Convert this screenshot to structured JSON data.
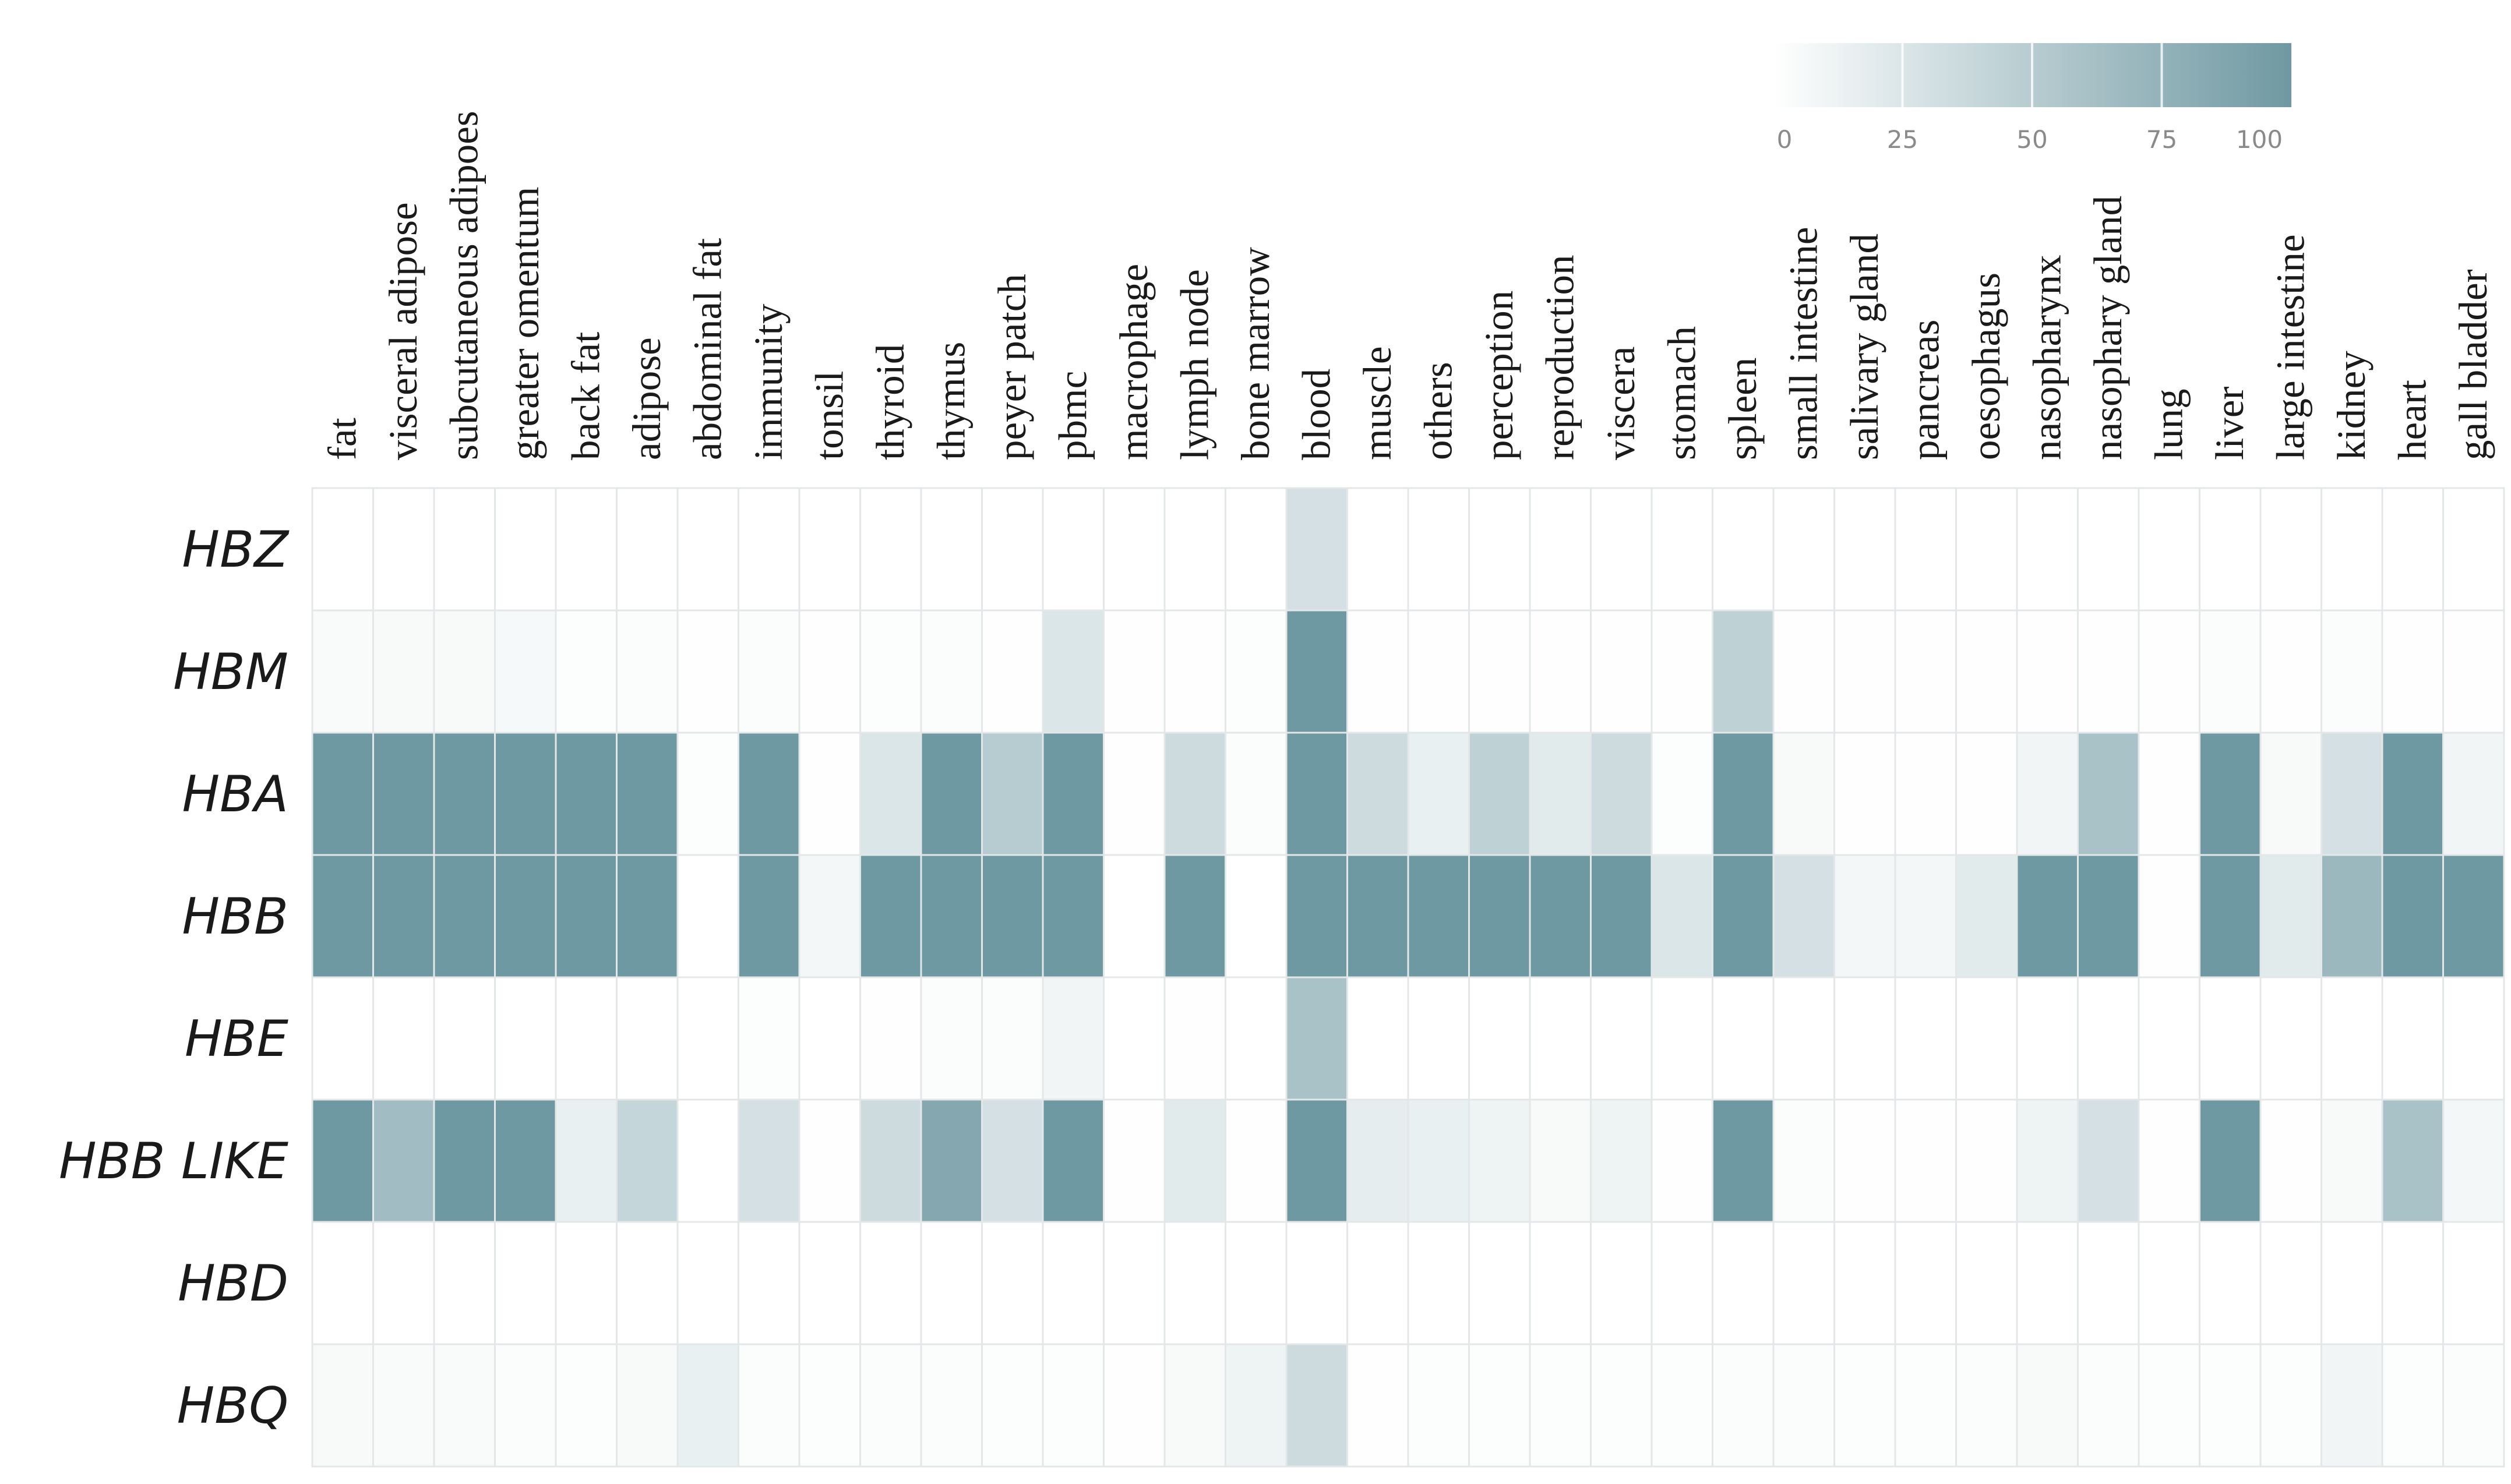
{
  "chart_data": {
    "type": "heatmap",
    "title": "",
    "columns": [
      "fat",
      "visceral adipose",
      "subcutaneous adipoes",
      "greater omentum",
      "back fat",
      "adipose",
      "abdominal fat",
      "immunity",
      "tonsil",
      "thyroid",
      "thymus",
      "peyer patch",
      "pbmc",
      "macrophage",
      "lymph node",
      "bone marrow",
      "blood",
      "muscle",
      "others",
      "perception",
      "reproduction",
      "viscera",
      "stomach",
      "spleen",
      "small intestine",
      "salivary gland",
      "pancreas",
      "oesophagus",
      "nasopharynx",
      "nasophary gland",
      "lung",
      "liver",
      "large intestine",
      "kidney",
      "heart",
      "gall bladder"
    ],
    "rows": [
      "HBZ",
      "HBM",
      "HBA",
      "HBB",
      "HBE",
      "HBB LIKE",
      "HBD",
      "HBQ"
    ],
    "values": [
      [
        0,
        0,
        0,
        0,
        0,
        0,
        0,
        0,
        0,
        0,
        0,
        0,
        0,
        0,
        0,
        0,
        30,
        0,
        0,
        0,
        0,
        0,
        0,
        0,
        0,
        0,
        0,
        0,
        0,
        0,
        0,
        0,
        0,
        0,
        0,
        0
      ],
      [
        4,
        5,
        5,
        6,
        2,
        3,
        1,
        3,
        1,
        2,
        3,
        1,
        25,
        1,
        1,
        2,
        100,
        1,
        1,
        1,
        1,
        1,
        1,
        45,
        1,
        1,
        1,
        1,
        1,
        1,
        1,
        3,
        1,
        3,
        1,
        1
      ],
      [
        100,
        100,
        100,
        100,
        100,
        100,
        2,
        100,
        1,
        25,
        100,
        50,
        100,
        1,
        35,
        3,
        100,
        35,
        15,
        45,
        20,
        35,
        2,
        100,
        5,
        1,
        1,
        1,
        10,
        60,
        1,
        100,
        5,
        30,
        100,
        10
      ],
      [
        100,
        100,
        100,
        100,
        100,
        100,
        0,
        100,
        8,
        100,
        100,
        100,
        100,
        0,
        100,
        0,
        100,
        100,
        100,
        100,
        100,
        100,
        25,
        100,
        30,
        8,
        8,
        20,
        100,
        100,
        1,
        100,
        20,
        70,
        100,
        100
      ],
      [
        0,
        0,
        0,
        0,
        0,
        0,
        0,
        2,
        0,
        1,
        3,
        3,
        10,
        0,
        1,
        0,
        60,
        0,
        0,
        0,
        0,
        0,
        0,
        0,
        0,
        0,
        0,
        0,
        0,
        0,
        0,
        0,
        0,
        0,
        0,
        0
      ],
      [
        100,
        65,
        100,
        100,
        15,
        40,
        0,
        30,
        1,
        35,
        85,
        30,
        100,
        1,
        20,
        1,
        100,
        18,
        15,
        12,
        5,
        12,
        1,
        100,
        3,
        1,
        1,
        1,
        12,
        30,
        1,
        100,
        1,
        5,
        60,
        8
      ],
      [
        0,
        0,
        0,
        0,
        0,
        0,
        0,
        0,
        0,
        0,
        0,
        0,
        0,
        0,
        0,
        0,
        0,
        0,
        0,
        0,
        0,
        0,
        0,
        0,
        0,
        0,
        0,
        0,
        0,
        0,
        0,
        0,
        0,
        0,
        0,
        0
      ],
      [
        5,
        4,
        4,
        3,
        2,
        5,
        15,
        3,
        2,
        3,
        3,
        2,
        2,
        1,
        5,
        12,
        35,
        1,
        2,
        2,
        2,
        2,
        2,
        3,
        3,
        2,
        2,
        3,
        5,
        3,
        2,
        2,
        2,
        10,
        2,
        3
      ]
    ],
    "legend": {
      "title": "",
      "ticks": [
        0,
        25,
        50,
        75,
        100
      ],
      "range": [
        0,
        100
      ],
      "colors": [
        "#ffffff",
        "#6f99a2"
      ],
      "placement": "top-right"
    }
  }
}
